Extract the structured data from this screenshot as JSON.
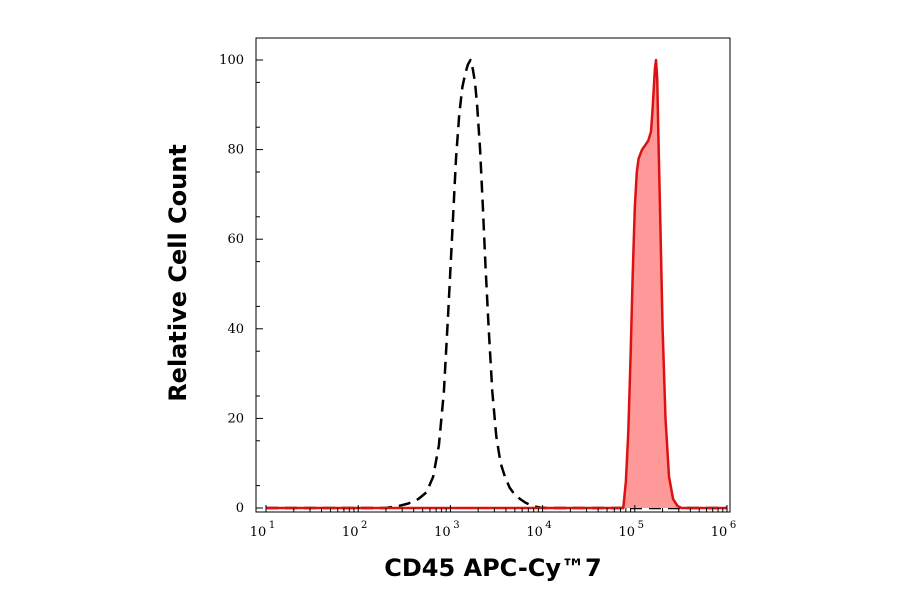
{
  "chart_data": {
    "type": "area",
    "title": "",
    "xlabel": "CD45 APC-Cy™7",
    "ylabel": "Relative Cell Count",
    "x_scale": "log",
    "xlim": [
      10,
      1000000
    ],
    "ylim": [
      0,
      100
    ],
    "x_ticks": [
      {
        "base": "10",
        "exp": "1",
        "value": 10
      },
      {
        "base": "10",
        "exp": "2",
        "value": 100
      },
      {
        "base": "10",
        "exp": "3",
        "value": 1000
      },
      {
        "base": "10",
        "exp": "4",
        "value": 10000
      },
      {
        "base": "10",
        "exp": "5",
        "value": 100000
      },
      {
        "base": "10",
        "exp": "6",
        "value": 1000000
      }
    ],
    "y_ticks": [
      0,
      20,
      40,
      60,
      80,
      100
    ],
    "grid": false,
    "legend": "none",
    "series": [
      {
        "style": "dashed",
        "color": "#000000",
        "filled": false,
        "points": [
          [
            10,
            0
          ],
          [
            200,
            0
          ],
          [
            280,
            0.5
          ],
          [
            350,
            1
          ],
          [
            450,
            2
          ],
          [
            550,
            3.5
          ],
          [
            650,
            7
          ],
          [
            750,
            14
          ],
          [
            850,
            26
          ],
          [
            950,
            44
          ],
          [
            1050,
            62
          ],
          [
            1150,
            78
          ],
          [
            1250,
            88
          ],
          [
            1350,
            94
          ],
          [
            1450,
            97
          ],
          [
            1550,
            99
          ],
          [
            1650,
            100
          ],
          [
            1750,
            98
          ],
          [
            1850,
            95
          ],
          [
            1950,
            90
          ],
          [
            2100,
            80
          ],
          [
            2250,
            67
          ],
          [
            2400,
            54
          ],
          [
            2600,
            40
          ],
          [
            2850,
            26
          ],
          [
            3150,
            16
          ],
          [
            3500,
            10
          ],
          [
            3900,
            7
          ],
          [
            4400,
            4.5
          ],
          [
            5000,
            3
          ],
          [
            5700,
            2
          ],
          [
            6500,
            1.2
          ],
          [
            7500,
            0.6
          ],
          [
            8500,
            0.3
          ],
          [
            9500,
            0.1
          ],
          [
            11000,
            0
          ],
          [
            1000000,
            0
          ]
        ]
      },
      {
        "style": "solid",
        "color": "#dd1111",
        "fill_color": "#ff9999",
        "filled": true,
        "points": [
          [
            10,
            0
          ],
          [
            75000,
            0
          ],
          [
            80000,
            6
          ],
          [
            85000,
            17
          ],
          [
            90000,
            34
          ],
          [
            95000,
            52
          ],
          [
            100000,
            67
          ],
          [
            105000,
            75
          ],
          [
            110000,
            78
          ],
          [
            120000,
            80
          ],
          [
            130000,
            81
          ],
          [
            140000,
            82
          ],
          [
            150000,
            84
          ],
          [
            155000,
            88
          ],
          [
            160000,
            93
          ],
          [
            165000,
            98
          ],
          [
            170000,
            100
          ],
          [
            175000,
            96
          ],
          [
            180000,
            84
          ],
          [
            190000,
            62
          ],
          [
            200000,
            40
          ],
          [
            215000,
            20
          ],
          [
            235000,
            7
          ],
          [
            260000,
            2
          ],
          [
            290000,
            0.5
          ],
          [
            320000,
            0
          ],
          [
            1000000,
            0
          ]
        ]
      }
    ]
  }
}
